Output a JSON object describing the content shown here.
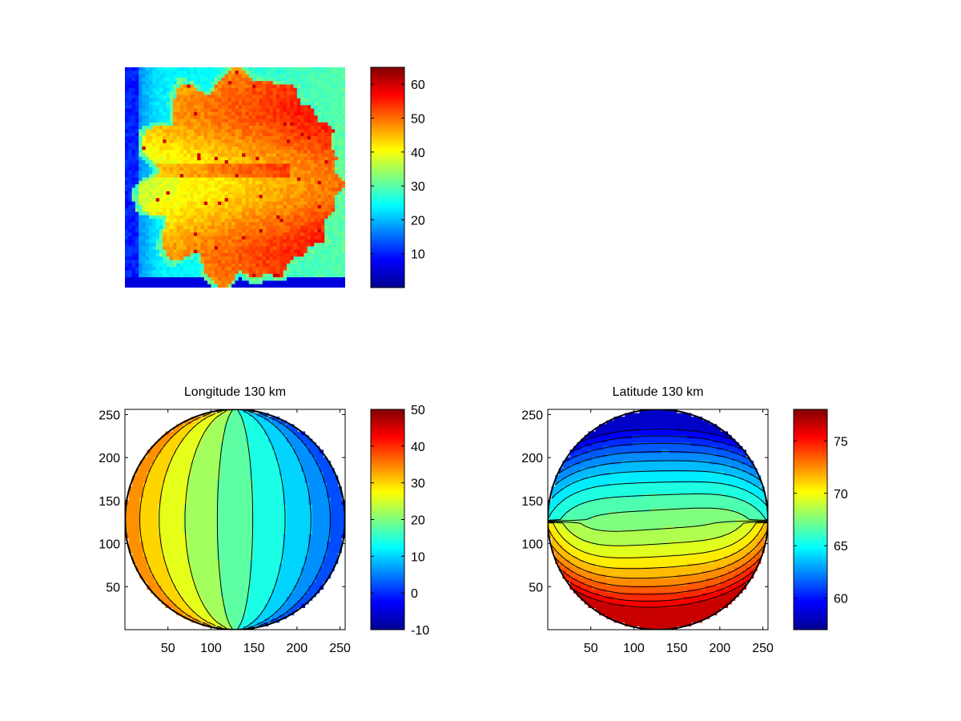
{
  "chart_data": [
    {
      "type": "heatmap",
      "title": "",
      "description_of_field": "intensity image",
      "color_scale": "jet",
      "xlim": [
        0,
        256
      ],
      "ylim": [
        0,
        256
      ],
      "axes_visible": false,
      "colorbar": {
        "min": 0,
        "max": 65,
        "ticks": [
          10,
          20,
          30,
          40,
          50,
          60
        ]
      }
    },
    {
      "type": "heatmap",
      "subtype": "filled-contour",
      "title": "Longitude 130 km",
      "xlim": [
        0,
        256
      ],
      "ylim": [
        0,
        256
      ],
      "xticks": [
        50,
        100,
        150,
        200,
        250
      ],
      "yticks": [
        50,
        100,
        150,
        200,
        250
      ],
      "color_scale": "jet",
      "colorbar": {
        "min": -10,
        "max": 50,
        "ticks": [
          -10,
          0,
          10,
          20,
          30,
          40,
          50
        ]
      },
      "contour_levels": [
        -4,
        0,
        4,
        8,
        12,
        16,
        20,
        24,
        28,
        32,
        36
      ],
      "field_range": [
        -6,
        38
      ]
    },
    {
      "type": "heatmap",
      "subtype": "filled-contour",
      "title": "Latitude 130 km",
      "xlim": [
        0,
        256
      ],
      "ylim": [
        0,
        256
      ],
      "xticks": [
        50,
        100,
        150,
        200,
        250
      ],
      "yticks": [
        50,
        100,
        150,
        200,
        250
      ],
      "color_scale": "jet",
      "colorbar": {
        "min": 57,
        "max": 78,
        "ticks": [
          60,
          65,
          70,
          75
        ]
      },
      "contour_levels": [
        59,
        60,
        61,
        62,
        63,
        64,
        65,
        66,
        67,
        68,
        69,
        70,
        71,
        72,
        73,
        74,
        75,
        76
      ],
      "field_range": [
        58,
        77
      ]
    }
  ]
}
